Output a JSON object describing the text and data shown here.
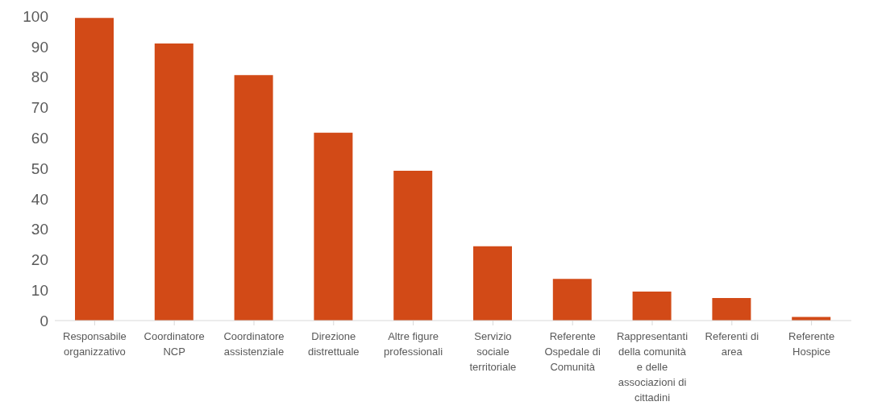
{
  "chart_data": {
    "type": "bar",
    "categories": [
      "Responsabile organizzativo",
      "Coordinatore NCP",
      "Coordinatore assistenziale",
      "Direzione distrettuale",
      "Altre figure professionali",
      "Servizio sociale territoriale",
      "Referente Ospedale di Comunità",
      "Rappresentanti della comunità e delle associazioni di cittadini",
      "Referenti di area",
      "Referente Hospice"
    ],
    "values": [
      99.4,
      91,
      80.6,
      61.7,
      49.2,
      24.4,
      13.7,
      9.5,
      7.4,
      1.2
    ],
    "color": "#d24a17",
    "ylim": [
      0,
      100
    ],
    "yticks": [
      0,
      10,
      20,
      30,
      40,
      50,
      60,
      70,
      80,
      90,
      100
    ],
    "grid": false,
    "legend": false
  }
}
